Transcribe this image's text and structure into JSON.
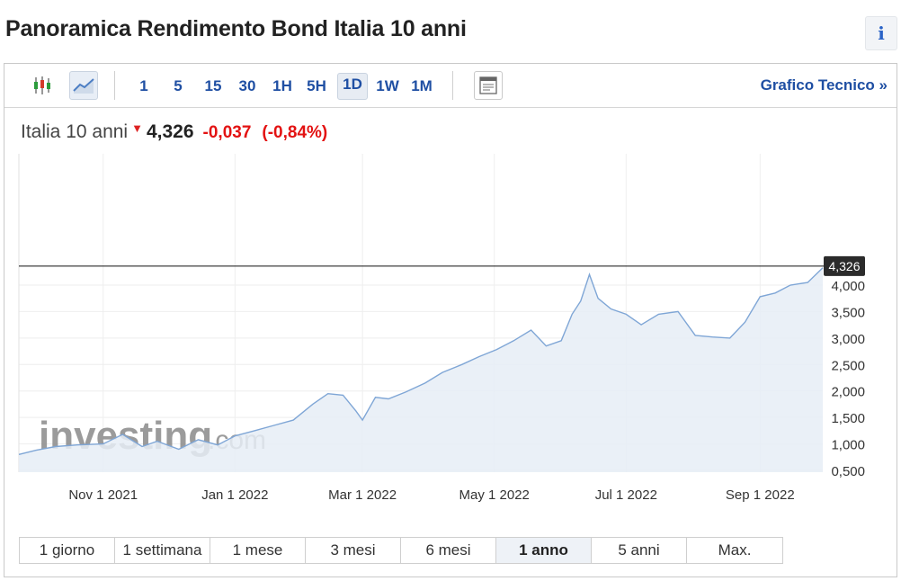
{
  "header": {
    "title": "Panoramica Rendimento Bond Italia 10 anni",
    "info_glyph": "i"
  },
  "toolbar": {
    "icons": [
      "candlestick-icon",
      "line-chart-icon",
      "layout-icon"
    ],
    "timeframes": [
      "1",
      "5",
      "15",
      "30",
      "1H",
      "5H",
      "1D",
      "1W",
      "1M"
    ],
    "active_timeframe": "1D",
    "tech_link": "Grafico Tecnico »"
  },
  "quote": {
    "name": "Italia 10 anni",
    "price": "4,326",
    "change": "-0,037",
    "change_pct": "(-0,84%)",
    "direction": "down"
  },
  "ranges": {
    "items": [
      "1 giorno",
      "1 settimana",
      "1 mese",
      "3 mesi",
      "6 mesi",
      "1 anno",
      "5 anni",
      "Max."
    ],
    "active": "1 anno"
  },
  "watermark": {
    "main": "investing",
    "suffix": ".com"
  },
  "colors": {
    "line": "#7fa6d6",
    "fill": "#e6edf6",
    "negative": "#e31212",
    "link": "#1f4fa3"
  },
  "chart_data": {
    "type": "area",
    "x_ticks": [
      "Nov 1 2021",
      "Jan 1 2022",
      "Mar 1 2022",
      "May 1 2022",
      "Jul 1 2022",
      "Sep 1 2022"
    ],
    "y_ticks": [
      "4,000",
      "3,500",
      "3,000",
      "2,500",
      "2,000",
      "1,500",
      "1,000",
      "0,500"
    ],
    "ylim": [
      0.5,
      4.5
    ],
    "last_value_label": "4,326",
    "last_value": 4.326,
    "grid": true,
    "x": [
      "2021-09-23",
      "2021-10-01",
      "2021-10-10",
      "2021-10-20",
      "2021-11-01",
      "2021-11-10",
      "2021-11-19",
      "2021-11-26",
      "2021-12-06",
      "2021-12-15",
      "2021-12-24",
      "2022-01-01",
      "2022-01-10",
      "2022-01-19",
      "2022-01-28",
      "2022-02-06",
      "2022-02-13",
      "2022-02-20",
      "2022-02-26",
      "2022-03-01",
      "2022-03-07",
      "2022-03-13",
      "2022-03-21",
      "2022-03-30",
      "2022-04-07",
      "2022-04-16",
      "2022-04-24",
      "2022-05-02",
      "2022-05-10",
      "2022-05-18",
      "2022-05-25",
      "2022-06-01",
      "2022-06-06",
      "2022-06-10",
      "2022-06-14",
      "2022-06-18",
      "2022-06-24",
      "2022-07-01",
      "2022-07-08",
      "2022-07-16",
      "2022-07-25",
      "2022-08-02",
      "2022-08-10",
      "2022-08-18",
      "2022-08-25",
      "2022-09-01",
      "2022-09-08",
      "2022-09-15",
      "2022-09-23",
      "2022-09-30"
    ],
    "values": [
      0.8,
      0.88,
      0.95,
      0.98,
      1.0,
      1.18,
      0.95,
      1.05,
      0.9,
      1.08,
      0.98,
      1.15,
      1.25,
      1.35,
      1.45,
      1.75,
      1.95,
      1.92,
      1.62,
      1.45,
      1.88,
      1.85,
      1.98,
      2.15,
      2.35,
      2.5,
      2.65,
      2.78,
      2.95,
      3.15,
      2.85,
      2.95,
      3.45,
      3.7,
      4.2,
      3.75,
      3.55,
      3.45,
      3.25,
      3.45,
      3.5,
      3.05,
      3.02,
      3.0,
      3.3,
      3.78,
      3.85,
      4.0,
      4.05,
      4.326
    ]
  }
}
